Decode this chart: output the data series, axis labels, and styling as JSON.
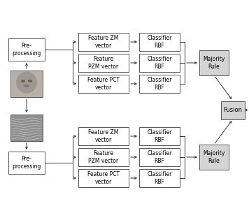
{
  "bg_color": "#ffffff",
  "box_edge": "#555555",
  "arrow_color": "#333333",
  "majority_facecolor": "#d4d4d4",
  "fusion_facecolor": "#d4d4d4",
  "preproc_facecolor": "#ffffff",
  "feat_facecolor": "#ffffff",
  "cls_facecolor": "#ffffff",
  "top_feature_labels": [
    "Feature ZM\nvector",
    "Feature\nPZM vector",
    "Feature PCT\nvector"
  ],
  "top_classifier_labels": [
    "Classifier\nRBF",
    "Classifier\nRBF",
    "Classifier\nRBF"
  ],
  "bot_feature_labels": [
    "Feature ZM\nvector",
    "Feature\nPZM vector",
    "Feature PCT\nvector"
  ],
  "bot_classifier_labels": [
    "Classifier\nRBF",
    "Classifier\nRBF",
    "Classifier\nRBF"
  ],
  "majority_top_label": "Majority\nRule",
  "majority_bot_label": "Majority\nRule",
  "fusion_label": "Fusion",
  "preproc_top_label": "Pre-\nprocessing",
  "preproc_bot_label": "Pre-\nprocessing",
  "fontsize": 5.5,
  "lw": 0.7
}
